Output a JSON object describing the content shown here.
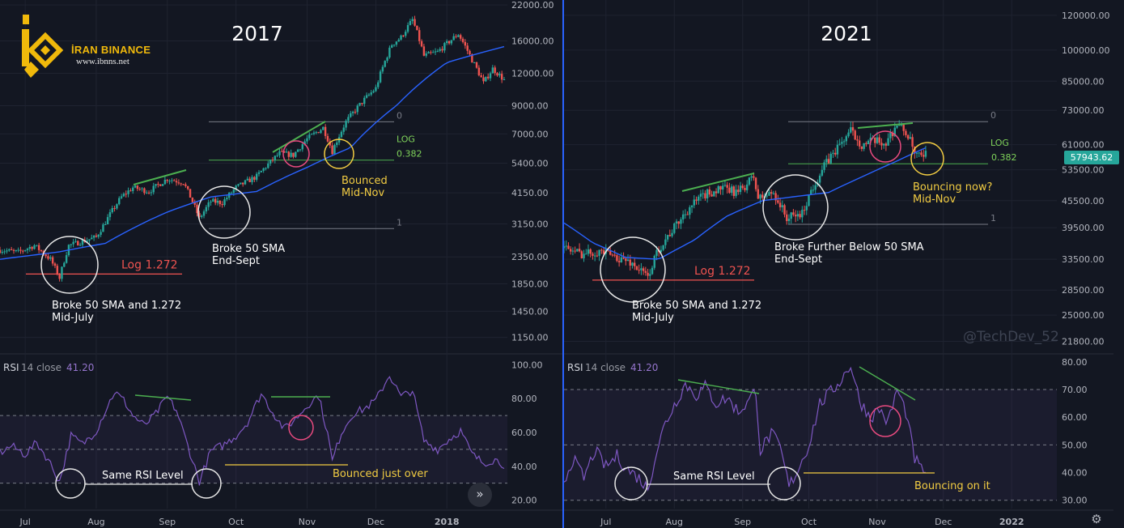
{
  "brand": {
    "name": "İRAN BINANCE",
    "url": "www.ibnns.net",
    "color": "#f0b90b"
  },
  "watermark": "@TechDev_52",
  "current_price_label": "57943.62",
  "chart_data": [
    {
      "type": "candlestick",
      "title": "2017",
      "y_scale": "log",
      "ylim": [
        1000,
        23000
      ],
      "y_ticks": [
        "22000.00",
        "16000.00",
        "12000.00",
        "9000.00",
        "7000.00",
        "5400.00",
        "4150.00",
        "3150.00",
        "2350.00",
        "1850.00",
        "1450.00",
        "1150.00"
      ],
      "x_ticks": [
        "Jul",
        "Aug",
        "Sep",
        "Oct",
        "Nov",
        "Dec",
        "2018"
      ],
      "x_domain": [
        "2017-06-20",
        "2018-01-26"
      ],
      "price_path": [
        [
          "2017-06-20",
          2500
        ],
        [
          "2017-06-28",
          2450
        ],
        [
          "2017-07-05",
          2600
        ],
        [
          "2017-07-12",
          2300
        ],
        [
          "2017-07-16",
          1950
        ],
        [
          "2017-07-20",
          2600
        ],
        [
          "2017-07-26",
          2700
        ],
        [
          "2017-08-01",
          2800
        ],
        [
          "2017-08-05",
          3200
        ],
        [
          "2017-08-12",
          4000
        ],
        [
          "2017-08-17",
          4350
        ],
        [
          "2017-08-24",
          4200
        ],
        [
          "2017-09-01",
          4700
        ],
        [
          "2017-09-08",
          4550
        ],
        [
          "2017-09-15",
          3300
        ],
        [
          "2017-09-20",
          3850
        ],
        [
          "2017-09-25",
          3800
        ],
        [
          "2017-10-01",
          4350
        ],
        [
          "2017-10-10",
          4800
        ],
        [
          "2017-10-20",
          5900
        ],
        [
          "2017-10-26",
          5800
        ],
        [
          "2017-11-01",
          6700
        ],
        [
          "2017-11-08",
          7400
        ],
        [
          "2017-11-12",
          6000
        ],
        [
          "2017-11-18",
          7800
        ],
        [
          "2017-11-26",
          9500
        ],
        [
          "2017-12-01",
          10500
        ],
        [
          "2017-12-08",
          15500
        ],
        [
          "2017-12-12",
          16500
        ],
        [
          "2017-12-17",
          19300
        ],
        [
          "2017-12-22",
          14000
        ],
        [
          "2017-12-28",
          14500
        ],
        [
          "2018-01-06",
          17000
        ],
        [
          "2018-01-12",
          13500
        ],
        [
          "2018-01-17",
          11000
        ],
        [
          "2018-01-21",
          12500
        ],
        [
          "2018-01-26",
          11300
        ]
      ],
      "sma50_path": [
        [
          "2017-06-20",
          2300
        ],
        [
          "2017-07-15",
          2450
        ],
        [
          "2017-08-05",
          2650
        ],
        [
          "2017-09-01",
          3500
        ],
        [
          "2017-09-20",
          4000
        ],
        [
          "2017-10-10",
          4200
        ],
        [
          "2017-11-01",
          5200
        ],
        [
          "2017-11-20",
          6200
        ],
        [
          "2017-12-10",
          9000
        ],
        [
          "2018-01-01",
          13200
        ],
        [
          "2018-01-26",
          15200
        ]
      ],
      "fib": [
        {
          "label": "0",
          "value": 7800
        },
        {
          "label": "0.382",
          "value": 5550
        },
        {
          "label": "1",
          "value": 3020
        },
        {
          "label": "Log 1.272",
          "value": 2200
        }
      ],
      "fib_text": "LOG",
      "annotations": [
        {
          "label": "Broke 50 SMA and 1.272",
          "sublabel": "Mid-July"
        },
        {
          "label": "Broke 50 SMA",
          "sublabel": "End-Sept"
        },
        {
          "label": "Bounced",
          "sublabel": "Mid-Nov"
        }
      ],
      "rsi": {
        "label": "RSI",
        "params": "14 close",
        "value": "41.20",
        "ylim": [
          15,
          105
        ],
        "y_ticks": [
          "100.00",
          "80.00",
          "60.00",
          "40.00",
          "20.00"
        ],
        "band": [
          30,
          70
        ],
        "mid": 50,
        "path": [
          [
            "2017-06-20",
            48
          ],
          [
            "2017-06-25",
            52
          ],
          [
            "2017-07-01",
            47
          ],
          [
            "2017-07-06",
            54
          ],
          [
            "2017-07-11",
            44
          ],
          [
            "2017-07-16",
            31
          ],
          [
            "2017-07-21",
            58
          ],
          [
            "2017-07-26",
            53
          ],
          [
            "2017-08-01",
            61
          ],
          [
            "2017-08-05",
            73
          ],
          [
            "2017-08-09",
            84
          ],
          [
            "2017-08-13",
            79
          ],
          [
            "2017-08-17",
            70
          ],
          [
            "2017-08-22",
            64
          ],
          [
            "2017-08-27",
            71
          ],
          [
            "2017-09-01",
            81
          ],
          [
            "2017-09-05",
            73
          ],
          [
            "2017-09-10",
            52
          ],
          [
            "2017-09-15",
            31
          ],
          [
            "2017-09-20",
            49
          ],
          [
            "2017-09-26",
            53
          ],
          [
            "2017-10-01",
            58
          ],
          [
            "2017-10-06",
            66
          ],
          [
            "2017-10-12",
            83
          ],
          [
            "2017-10-17",
            72
          ],
          [
            "2017-10-22",
            62
          ],
          [
            "2017-10-27",
            68
          ],
          [
            "2017-11-01",
            76
          ],
          [
            "2017-11-06",
            82
          ],
          [
            "2017-11-10",
            59
          ],
          [
            "2017-11-12",
            43
          ],
          [
            "2017-11-16",
            60
          ],
          [
            "2017-11-21",
            71
          ],
          [
            "2017-11-26",
            74
          ],
          [
            "2017-12-01",
            79
          ],
          [
            "2017-12-07",
            94
          ],
          [
            "2017-12-12",
            81
          ],
          [
            "2017-12-17",
            85
          ],
          [
            "2017-12-22",
            55
          ],
          [
            "2017-12-28",
            50
          ],
          [
            "2018-01-02",
            56
          ],
          [
            "2018-01-07",
            61
          ],
          [
            "2018-01-12",
            47
          ],
          [
            "2018-01-17",
            42
          ],
          [
            "2018-01-22",
            44
          ],
          [
            "2018-01-26",
            41
          ]
        ],
        "annotations": [
          "Same RSI Level",
          "Bounced just over"
        ]
      }
    },
    {
      "type": "candlestick",
      "title": "2021",
      "y_scale": "log",
      "ylim": [
        20500,
        130000
      ],
      "y_ticks": [
        "120000.00",
        "100000.00",
        "85000.00",
        "73000.00",
        "61000.00",
        "53500.00",
        "45500.00",
        "39500.00",
        "33500.00",
        "28500.00",
        "25000.00",
        "21800.00"
      ],
      "x_ticks": [
        "Jul",
        "Aug",
        "Sep",
        "Oct",
        "Nov",
        "Dec",
        "2022"
      ],
      "x_domain": [
        "2021-06-12",
        "2022-01-20"
      ],
      "price_path": [
        [
          "2021-06-12",
          35500
        ],
        [
          "2021-06-20",
          34500
        ],
        [
          "2021-06-28",
          35000
        ],
        [
          "2021-07-05",
          34000
        ],
        [
          "2021-07-12",
          33000
        ],
        [
          "2021-07-20",
          30500
        ],
        [
          "2021-07-25",
          35500
        ],
        [
          "2021-08-01",
          39500
        ],
        [
          "2021-08-08",
          44000
        ],
        [
          "2021-08-15",
          47000
        ],
        [
          "2021-08-22",
          48500
        ],
        [
          "2021-08-30",
          47500
        ],
        [
          "2021-09-06",
          51500
        ],
        [
          "2021-09-08",
          46000
        ],
        [
          "2021-09-15",
          47500
        ],
        [
          "2021-09-21",
          41500
        ],
        [
          "2021-09-28",
          42500
        ],
        [
          "2021-10-02",
          48000
        ],
        [
          "2021-10-08",
          54500
        ],
        [
          "2021-10-15",
          61000
        ],
        [
          "2021-10-20",
          65500
        ],
        [
          "2021-10-25",
          61000
        ],
        [
          "2021-10-30",
          62000
        ],
        [
          "2021-11-05",
          61500
        ],
        [
          "2021-11-10",
          68000
        ],
        [
          "2021-11-15",
          64000
        ],
        [
          "2021-11-18",
          58000
        ],
        [
          "2021-11-22",
          56500
        ],
        [
          "2021-11-23",
          57943
        ]
      ],
      "sma50_path": [
        [
          "2021-06-12",
          40500
        ],
        [
          "2021-06-25",
          36500
        ],
        [
          "2021-07-10",
          33800
        ],
        [
          "2021-07-25",
          33500
        ],
        [
          "2021-08-10",
          37000
        ],
        [
          "2021-08-25",
          42000
        ],
        [
          "2021-09-10",
          45500
        ],
        [
          "2021-09-25",
          46500
        ],
        [
          "2021-10-10",
          47500
        ],
        [
          "2021-10-25",
          51500
        ],
        [
          "2021-11-10",
          56000
        ],
        [
          "2021-11-23",
          60000
        ]
      ],
      "fib": [
        {
          "label": "0",
          "value": 68800
        },
        {
          "label": "0.382",
          "value": 55200
        },
        {
          "label": "1",
          "value": 40200
        },
        {
          "label": "Log 1.272",
          "value": 31600
        }
      ],
      "fib_text": "LOG",
      "annotations": [
        {
          "label": "Broke 50 SMA and 1.272",
          "sublabel": "Mid-July"
        },
        {
          "label": "Broke Further Below 50 SMA",
          "sublabel": "End-Sept"
        },
        {
          "label": "Bouncing now?",
          "sublabel": "Mid-Nov"
        }
      ],
      "rsi": {
        "label": "RSI",
        "params": "14 close",
        "value": "41.20",
        "ylim": [
          27,
          82
        ],
        "y_ticks": [
          "80.00",
          "70.00",
          "60.00",
          "50.00",
          "40.00",
          "30.00"
        ],
        "band": [
          30,
          70
        ],
        "mid": 50,
        "path": [
          [
            "2021-06-12",
            37
          ],
          [
            "2021-06-16",
            45
          ],
          [
            "2021-06-21",
            38
          ],
          [
            "2021-06-26",
            48
          ],
          [
            "2021-07-01",
            42
          ],
          [
            "2021-07-06",
            46
          ],
          [
            "2021-07-11",
            41
          ],
          [
            "2021-07-16",
            38
          ],
          [
            "2021-07-20",
            34
          ],
          [
            "2021-07-24",
            48
          ],
          [
            "2021-07-28",
            58
          ],
          [
            "2021-08-02",
            66
          ],
          [
            "2021-08-06",
            72
          ],
          [
            "2021-08-11",
            68
          ],
          [
            "2021-08-15",
            71
          ],
          [
            "2021-08-20",
            65
          ],
          [
            "2021-08-25",
            67
          ],
          [
            "2021-08-30",
            62
          ],
          [
            "2021-09-04",
            66
          ],
          [
            "2021-09-07",
            70
          ],
          [
            "2021-09-09",
            48
          ],
          [
            "2021-09-14",
            54
          ],
          [
            "2021-09-18",
            49
          ],
          [
            "2021-09-22",
            35
          ],
          [
            "2021-09-26",
            41
          ],
          [
            "2021-10-01",
            50
          ],
          [
            "2021-10-06",
            65
          ],
          [
            "2021-10-11",
            69
          ],
          [
            "2021-10-16",
            74
          ],
          [
            "2021-10-20",
            79
          ],
          [
            "2021-10-24",
            66
          ],
          [
            "2021-10-29",
            60
          ],
          [
            "2021-11-02",
            63
          ],
          [
            "2021-11-06",
            58
          ],
          [
            "2021-11-10",
            70
          ],
          [
            "2021-11-14",
            62
          ],
          [
            "2021-11-18",
            45
          ],
          [
            "2021-11-21",
            41
          ],
          [
            "2021-11-23",
            41
          ]
        ],
        "annotations": [
          "Same RSI Level",
          "Bouncing on it"
        ]
      }
    }
  ]
}
